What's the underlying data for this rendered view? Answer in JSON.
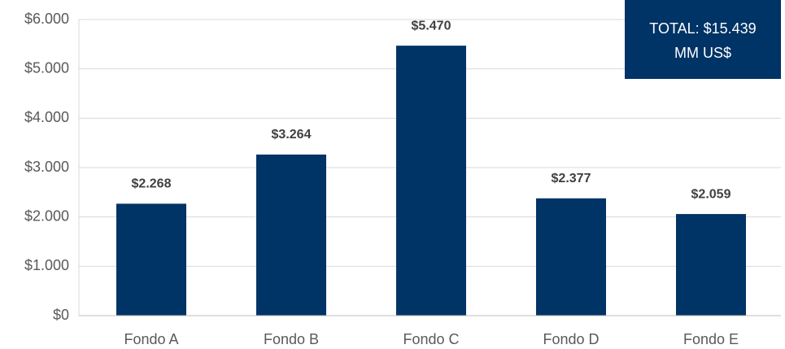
{
  "chart_data": {
    "type": "bar",
    "categories": [
      "Fondo A",
      "Fondo B",
      "Fondo C",
      "Fondo D",
      "Fondo E"
    ],
    "values": [
      2268,
      3264,
      5470,
      2377,
      2059
    ],
    "value_labels": [
      "$2.268",
      "$3.264",
      "$5.470",
      "$2.377",
      "$2.059"
    ],
    "color": "#003366",
    "ylim": [
      0,
      6000
    ],
    "yticks": [
      {
        "value": 0,
        "label": "$0"
      },
      {
        "value": 1000,
        "label": "$1.000"
      },
      {
        "value": 2000,
        "label": "$2.000"
      },
      {
        "value": 3000,
        "label": "$3.000"
      },
      {
        "value": 4000,
        "label": "$4.000"
      },
      {
        "value": 5000,
        "label": "$5.000"
      },
      {
        "value": 6000,
        "label": "$6.000"
      }
    ],
    "grid": true,
    "annotation": [
      "TOTAL: $15.439",
      "MM US$"
    ]
  }
}
